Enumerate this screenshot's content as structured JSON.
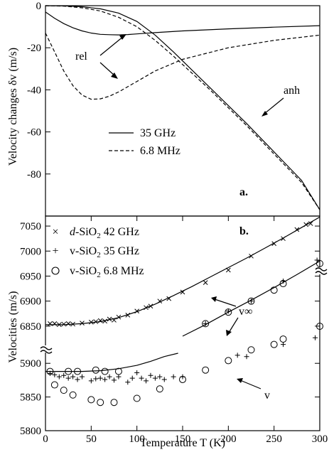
{
  "chart_data": [
    {
      "type": "line",
      "panel_label": "a.",
      "ylabel": "Velocity changes δv  (m/s)",
      "xlim": [
        0,
        300
      ],
      "ylim": [
        -100,
        0
      ],
      "yticks": [
        "0",
        "-20",
        "-40",
        "-60",
        "-80"
      ],
      "ytick_values": [
        0,
        -20,
        -40,
        -60,
        -80
      ],
      "legend_position": "middle-left",
      "series": [
        {
          "name": "35  GHz",
          "style": "solid",
          "component": "rel",
          "x": [
            0,
            10,
            20,
            30,
            40,
            50,
            60,
            70,
            80,
            90,
            100,
            120,
            150,
            200,
            250,
            300
          ],
          "y": [
            -3,
            -6,
            -8.5,
            -10.5,
            -12,
            -13,
            -13.6,
            -13.8,
            -13.9,
            -13.7,
            -13.4,
            -12.8,
            -12,
            -11,
            -10.2,
            -9.5
          ]
        },
        {
          "name": "6.8 MHz",
          "style": "dashed",
          "component": "rel",
          "x": [
            0,
            10,
            20,
            30,
            40,
            50,
            60,
            70,
            80,
            90,
            100,
            120,
            150,
            200,
            250,
            300
          ],
          "y": [
            -13,
            -22,
            -31,
            -38,
            -42.5,
            -44.5,
            -44.3,
            -43,
            -41,
            -38.5,
            -36,
            -31,
            -25.5,
            -20,
            -16.5,
            -14
          ]
        },
        {
          "name": "35  GHz",
          "style": "solid",
          "component": "anh",
          "x": [
            0,
            20,
            40,
            60,
            80,
            100,
            120,
            140,
            160,
            180,
            200,
            220,
            240,
            260,
            280,
            300
          ],
          "y": [
            0,
            -0.1,
            -0.5,
            -1.5,
            -3.5,
            -7.5,
            -14,
            -22,
            -30.5,
            -39,
            -47.5,
            -56,
            -65,
            -74,
            -83,
            -97
          ]
        },
        {
          "name": "6.8 MHz",
          "style": "dashed",
          "component": "anh",
          "x": [
            0,
            20,
            40,
            60,
            80,
            100,
            120,
            140,
            160,
            180,
            200,
            220,
            240,
            260,
            280,
            300
          ],
          "y": [
            0,
            -0.2,
            -1,
            -2.5,
            -5.5,
            -10,
            -16.5,
            -24,
            -32,
            -40,
            -48.5,
            -57,
            -66,
            -75,
            -84,
            -97
          ]
        }
      ],
      "annotations": [
        "rel",
        "anh"
      ]
    },
    {
      "type": "scatter",
      "panel_label": "b.",
      "xlabel": "Temperature T  (K)",
      "ylabel": "Velocities (m/s)",
      "xlim": [
        0,
        300
      ],
      "xticks": [
        "0",
        "50",
        "100",
        "150",
        "200",
        "250",
        "300"
      ],
      "xtick_values": [
        0,
        50,
        100,
        150,
        200,
        250,
        300
      ],
      "yticks_upper": [
        "7050",
        "7000",
        "6950",
        "6900",
        "6850"
      ],
      "ytick_values_upper": [
        7050,
        7000,
        6950,
        6900,
        6850
      ],
      "ylim_upper": [
        6820,
        7070
      ],
      "yticks_lower": [
        "5900",
        "5850",
        "5800"
      ],
      "ytick_values_lower": [
        5900,
        5850,
        5800
      ],
      "ylim_lower": [
        5800,
        5915
      ],
      "axis_break": true,
      "legend_position": "top-left",
      "series": [
        {
          "name_prefix": "d",
          "name_main": "-SiO",
          "name_sub": "2",
          "name_suffix": "  42  GHz",
          "marker": "x",
          "segment": "upper",
          "x": [
            5,
            10,
            15,
            20,
            25,
            30,
            40,
            50,
            55,
            60,
            65,
            70,
            75,
            80,
            90,
            100,
            110,
            115,
            125,
            135,
            150,
            175,
            200,
            225,
            250,
            260,
            275,
            285,
            290
          ],
          "y": [
            6855,
            6855,
            6853,
            6854,
            6855,
            6854,
            6856,
            6858,
            6859,
            6861,
            6860,
            6864,
            6862,
            6868,
            6872,
            6880,
            6887,
            6890,
            6900,
            6905,
            6918,
            6937,
            6962,
            6990,
            7015,
            7025,
            7043,
            7053,
            7055
          ]
        },
        {
          "name_prefix": "v",
          "name_main": "-SiO",
          "name_sub": "2",
          "name_suffix": "  35  GHz",
          "marker": "+",
          "segment": "upper",
          "x": [
            175,
            200,
            225,
            260,
            297
          ],
          "y": [
            6855,
            6880,
            6900,
            6940,
            6982
          ]
        },
        {
          "name_prefix": "v",
          "name_main": "-SiO",
          "name_sub": "2",
          "name_suffix": "  35  GHz",
          "marker": "+",
          "segment": "lower",
          "x": [
            5,
            10,
            15,
            20,
            25,
            30,
            35,
            40,
            50,
            55,
            60,
            65,
            70,
            75,
            80,
            90,
            95,
            100,
            105,
            110,
            115,
            120,
            125,
            130,
            140,
            150,
            210,
            220,
            260,
            295
          ],
          "y": [
            5885,
            5883,
            5880,
            5882,
            5878,
            5880,
            5876,
            5880,
            5874,
            5877,
            5878,
            5876,
            5880,
            5875,
            5880,
            5872,
            5878,
            5886,
            5878,
            5874,
            5882,
            5878,
            5880,
            5876,
            5880,
            5880,
            5912,
            5910,
            5928,
            5938
          ]
        },
        {
          "name_prefix": "v",
          "name_main": "-SiO",
          "name_sub": "2",
          "name_suffix": "  6.8 MHz",
          "marker": "o",
          "segment": "upper",
          "x": [
            175,
            200,
            225,
            250,
            260,
            300
          ],
          "y": [
            6855,
            6878,
            6900,
            6922,
            6935,
            6975
          ]
        },
        {
          "name_prefix": "v",
          "name_main": "-SiO",
          "name_sub": "2",
          "name_suffix": "  6.8 MHz",
          "marker": "o",
          "segment": "lower",
          "x": [
            5,
            10,
            20,
            25,
            30,
            35,
            50,
            55,
            60,
            65,
            75,
            80,
            100,
            125,
            150,
            175,
            200,
            225,
            250,
            260,
            300
          ],
          "y": [
            5888,
            5868,
            5860,
            5888,
            5853,
            5888,
            5846,
            5890,
            5842,
            5888,
            5842,
            5888,
            5848,
            5862,
            5876,
            5890,
            5904,
            5920,
            5928,
            5936,
            5955
          ]
        },
        {
          "name": "v∞ fit (d)",
          "marker": "line",
          "segment": "upper",
          "x": [
            0,
            20,
            40,
            60,
            80,
            100,
            120,
            140,
            160,
            180,
            200,
            220,
            240,
            260,
            280,
            300
          ],
          "y": [
            6853,
            6853,
            6855,
            6859,
            6867,
            6879,
            6894,
            6911,
            6929,
            6948,
            6967,
            6986,
            7006,
            7026,
            7047,
            7068
          ]
        },
        {
          "name": "v∞ fit (v)",
          "marker": "line",
          "segment": "upper",
          "x": [
            150,
            175,
            200,
            225,
            250,
            275,
            300
          ],
          "y": [
            6830,
            6853,
            6878,
            6902,
            6927,
            6953,
            6980
          ]
        },
        {
          "name": "v∞ fit (v) low",
          "marker": "line",
          "segment": "lower",
          "x": [
            0,
            20,
            40,
            60,
            80,
            100,
            115,
            130,
            145
          ],
          "y": [
            5888,
            5888,
            5888,
            5889,
            5892,
            5897,
            5903,
            5910,
            5915
          ]
        }
      ],
      "annotations": [
        "v∞",
        "v"
      ]
    }
  ]
}
